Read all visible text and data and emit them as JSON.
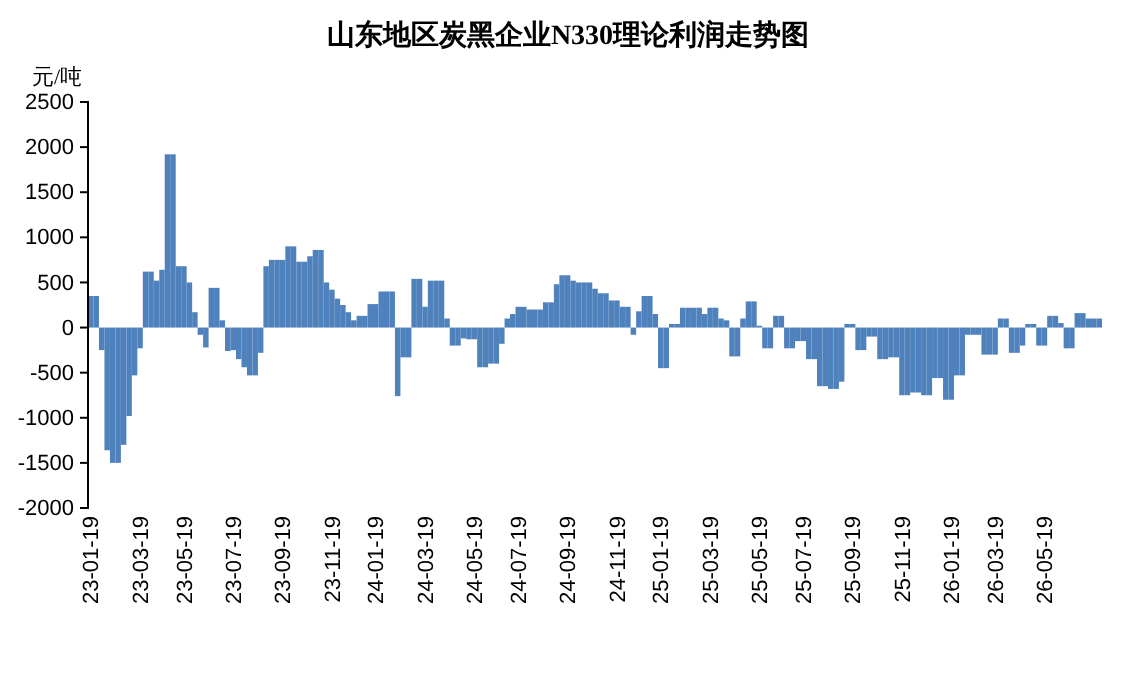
{
  "chart_data": {
    "type": "bar",
    "title": "山东地区炭黑企业N330理论利润走势图",
    "ylabel": "元/吨",
    "categories": [
      "23-01-19",
      null,
      null,
      null,
      null,
      null,
      null,
      null,
      null,
      "23-03-19",
      null,
      null,
      null,
      null,
      null,
      null,
      null,
      "23-05-19",
      null,
      null,
      null,
      null,
      null,
      null,
      null,
      null,
      "23-07-19",
      null,
      null,
      null,
      null,
      null,
      null,
      null,
      null,
      "23-09-19",
      null,
      null,
      null,
      null,
      null,
      null,
      null,
      null,
      "23-11-19",
      null,
      null,
      null,
      null,
      null,
      null,
      null,
      "24-01-19",
      null,
      null,
      null,
      null,
      null,
      null,
      null,
      null,
      "24-03-19",
      null,
      null,
      null,
      null,
      null,
      null,
      null,
      null,
      "24-05-19",
      null,
      null,
      null,
      null,
      null,
      null,
      null,
      "24-07-19",
      null,
      null,
      null,
      null,
      null,
      null,
      null,
      null,
      "24-09-19",
      null,
      null,
      null,
      null,
      null,
      null,
      null,
      null,
      "24-11-19",
      null,
      null,
      null,
      null,
      null,
      null,
      null,
      "25-01-19",
      null,
      null,
      null,
      null,
      null,
      null,
      null,
      null,
      "25-03-19",
      null,
      null,
      null,
      null,
      null,
      null,
      null,
      null,
      "25-05-19",
      null,
      null,
      null,
      null,
      null,
      null,
      null,
      "25-07-19",
      null,
      null,
      null,
      null,
      null,
      null,
      null,
      null,
      "25-09-19",
      null,
      null,
      null,
      null,
      null,
      null,
      null,
      null,
      "25-11-19",
      null,
      null,
      null,
      null,
      null,
      null,
      null,
      null,
      "26-01-19",
      null,
      null,
      null,
      null,
      null,
      null,
      null,
      "26-03-19",
      null,
      null,
      null,
      null,
      null,
      null,
      null,
      null,
      "26-05-19",
      null,
      null,
      null,
      null,
      null,
      null,
      null,
      null,
      null,
      null
    ],
    "values": [
      350,
      350,
      -250,
      -1360,
      -1500,
      -1500,
      -1300,
      -980,
      -530,
      -230,
      620,
      620,
      520,
      640,
      1920,
      1920,
      680,
      680,
      500,
      170,
      -80,
      -220,
      440,
      440,
      80,
      -260,
      -250,
      -350,
      -440,
      -530,
      -530,
      -280,
      680,
      750,
      750,
      750,
      900,
      900,
      730,
      730,
      790,
      860,
      860,
      500,
      420,
      320,
      250,
      170,
      80,
      130,
      130,
      260,
      260,
      400,
      400,
      400,
      -760,
      -330,
      -330,
      540,
      540,
      230,
      520,
      520,
      520,
      100,
      -200,
      -200,
      -120,
      -130,
      -130,
      -440,
      -440,
      -400,
      -400,
      -180,
      100,
      150,
      230,
      230,
      200,
      200,
      200,
      280,
      280,
      480,
      580,
      580,
      520,
      500,
      500,
      500,
      430,
      380,
      380,
      300,
      300,
      230,
      230,
      -80,
      180,
      350,
      350,
      150,
      -450,
      -450,
      40,
      40,
      220,
      220,
      220,
      220,
      150,
      220,
      220,
      100,
      80,
      -320,
      -320,
      100,
      290,
      290,
      20,
      -230,
      -230,
      130,
      130,
      -230,
      -230,
      -150,
      -150,
      -350,
      -350,
      -650,
      -650,
      -680,
      -680,
      -600,
      40,
      40,
      -250,
      -250,
      -100,
      -100,
      -350,
      -350,
      -330,
      -330,
      -750,
      -750,
      -720,
      -720,
      -750,
      -750,
      -560,
      -560,
      -800,
      -800,
      -530,
      -530,
      -80,
      -80,
      -80,
      -300,
      -300,
      -300,
      100,
      100,
      -280,
      -280,
      -200,
      40,
      40,
      -200,
      -200,
      130,
      130,
      50,
      -230,
      -230,
      160,
      160,
      100,
      100,
      100
    ],
    "color": "#4f81bd",
    "ylim": [
      -2000,
      2500
    ],
    "yticks": [
      -2000,
      -1500,
      -1000,
      -500,
      0,
      500,
      1000,
      1500,
      2000,
      2500
    ],
    "grid": false
  }
}
